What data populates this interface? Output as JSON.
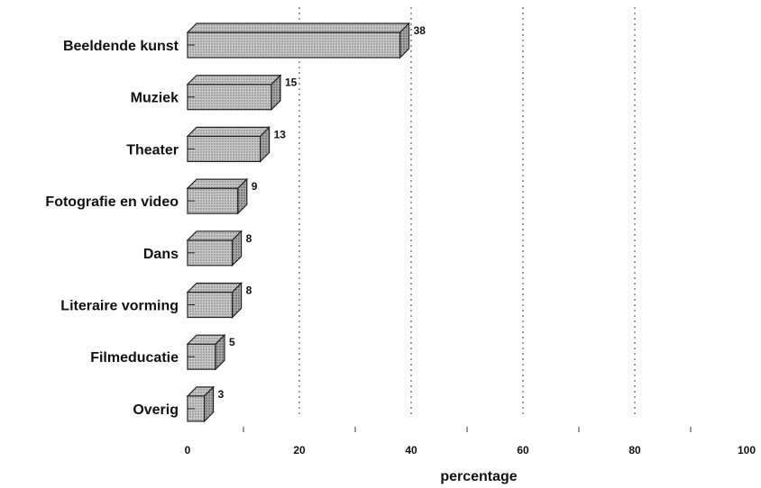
{
  "chart_data": {
    "type": "bar",
    "orientation": "horizontal",
    "style": "3d",
    "categories": [
      "Beeldende kunst",
      "Muziek",
      "Theater",
      "Fotografie en video",
      "Dans",
      "Literaire vorming",
      "Filmeducatie",
      "Overig"
    ],
    "values": [
      38,
      15,
      13,
      9,
      8,
      8,
      5,
      3
    ],
    "xlabel": "percentage",
    "ylabel": "",
    "xlim": [
      0,
      100
    ],
    "xticks": [
      0,
      20,
      40,
      60,
      80,
      100
    ],
    "grid": "dotted vertical lines at 20, 40, 60, 80",
    "bar_color": "#bdbdbd"
  }
}
